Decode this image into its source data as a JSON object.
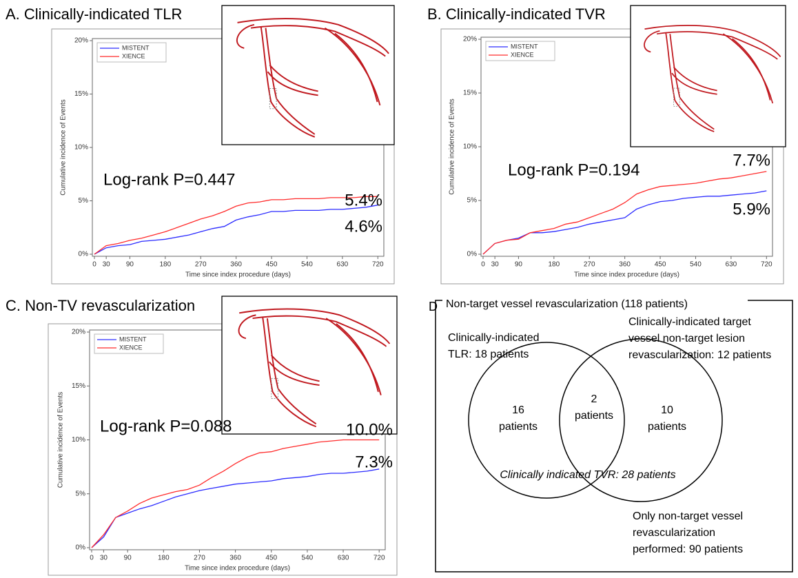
{
  "chart_data": [
    {
      "type": "line",
      "title": "A. Clinically-indicated TLR",
      "x_label": "Time since index procedure (days)",
      "y_label": "Cumulative incidence of Events",
      "x": [
        0,
        30,
        60,
        90,
        120,
        150,
        180,
        210,
        240,
        270,
        300,
        330,
        360,
        390,
        420,
        450,
        480,
        510,
        540,
        570,
        600,
        630,
        660,
        690,
        720
      ],
      "xlim": [
        0,
        730
      ],
      "xticks": [
        0,
        30,
        90,
        180,
        270,
        360,
        450,
        540,
        630,
        720
      ],
      "ylim": [
        0,
        20
      ],
      "yticks": [
        {
          "value": 0,
          "label": "0%"
        },
        {
          "value": 5,
          "label": "5%"
        },
        {
          "value": 10,
          "label": "10%"
        },
        {
          "value": 15,
          "label": "15%"
        },
        {
          "value": 20,
          "label": "20%"
        }
      ],
      "legend": "upper left",
      "series": [
        {
          "name": "MISTENT",
          "color": "#2a2aff",
          "values": [
            0,
            0.6,
            0.8,
            0.9,
            1.2,
            1.3,
            1.4,
            1.6,
            1.8,
            2.1,
            2.4,
            2.6,
            3.2,
            3.5,
            3.7,
            4.0,
            4.0,
            4.1,
            4.1,
            4.1,
            4.2,
            4.2,
            4.3,
            4.4,
            4.6
          ]
        },
        {
          "name": "XIENCE",
          "color": "#ff2a2a",
          "values": [
            0,
            0.8,
            1.0,
            1.3,
            1.5,
            1.8,
            2.1,
            2.5,
            2.9,
            3.3,
            3.6,
            4.0,
            4.5,
            4.8,
            4.9,
            5.1,
            5.1,
            5.2,
            5.2,
            5.2,
            5.3,
            5.3,
            5.3,
            5.4,
            5.4
          ]
        }
      ],
      "annotations": [
        "Log-rank P=0.447",
        "5.4%",
        "4.6%"
      ]
    },
    {
      "type": "line",
      "title": "B. Clinically-indicated TVR",
      "x_label": "Time since index procedure (days)",
      "y_label": "Cumulative incidence of Events",
      "x": [
        0,
        30,
        60,
        90,
        120,
        150,
        180,
        210,
        240,
        270,
        300,
        330,
        360,
        390,
        420,
        450,
        480,
        510,
        540,
        570,
        600,
        630,
        660,
        690,
        720
      ],
      "xlim": [
        0,
        730
      ],
      "xticks": [
        0,
        30,
        90,
        180,
        270,
        360,
        450,
        540,
        630,
        720
      ],
      "ylim": [
        0,
        20
      ],
      "yticks": [
        {
          "value": 0,
          "label": "0%"
        },
        {
          "value": 5,
          "label": "5%"
        },
        {
          "value": 10,
          "label": "10%"
        },
        {
          "value": 15,
          "label": "15%"
        },
        {
          "value": 20,
          "label": "20%"
        }
      ],
      "legend": "upper left",
      "series": [
        {
          "name": "MISTENT",
          "color": "#2a2aff",
          "values": [
            0,
            1.0,
            1.3,
            1.5,
            2.0,
            2.0,
            2.1,
            2.3,
            2.5,
            2.8,
            3.0,
            3.2,
            3.4,
            4.2,
            4.6,
            4.9,
            5.0,
            5.2,
            5.3,
            5.4,
            5.4,
            5.5,
            5.6,
            5.7,
            5.9
          ]
        },
        {
          "name": "XIENCE",
          "color": "#ff2a2a",
          "values": [
            0,
            1.0,
            1.3,
            1.4,
            2.0,
            2.2,
            2.4,
            2.8,
            3.0,
            3.4,
            3.8,
            4.2,
            4.8,
            5.6,
            6.0,
            6.3,
            6.4,
            6.5,
            6.6,
            6.8,
            7.0,
            7.1,
            7.3,
            7.5,
            7.7
          ]
        }
      ],
      "annotations": [
        "Log-rank P=0.194",
        "7.7%",
        "5.9%"
      ]
    },
    {
      "type": "line",
      "title": "C. Non-TV revascularization",
      "x_label": "Time since index procedure (days)",
      "y_label": "Cumulative incidence of Events",
      "x": [
        0,
        30,
        60,
        90,
        120,
        150,
        180,
        210,
        240,
        270,
        300,
        330,
        360,
        390,
        420,
        450,
        480,
        510,
        540,
        570,
        600,
        630,
        660,
        690,
        720
      ],
      "xlim": [
        0,
        730
      ],
      "xticks": [
        0,
        30,
        90,
        180,
        270,
        360,
        450,
        540,
        630,
        720
      ],
      "ylim": [
        0,
        20
      ],
      "yticks": [
        {
          "value": 0,
          "label": "0%"
        },
        {
          "value": 5,
          "label": "5%"
        },
        {
          "value": 10,
          "label": "10%"
        },
        {
          "value": 15,
          "label": "15%"
        },
        {
          "value": 20,
          "label": "20%"
        }
      ],
      "legend": "upper left",
      "series": [
        {
          "name": "MISTENT",
          "color": "#2a2aff",
          "values": [
            0,
            1.0,
            2.8,
            3.2,
            3.6,
            3.9,
            4.3,
            4.7,
            5.0,
            5.3,
            5.5,
            5.7,
            5.9,
            6.0,
            6.1,
            6.2,
            6.4,
            6.5,
            6.6,
            6.8,
            6.9,
            6.9,
            7.0,
            7.1,
            7.3
          ]
        },
        {
          "name": "XIENCE",
          "color": "#ff2a2a",
          "values": [
            0,
            1.2,
            2.8,
            3.4,
            4.1,
            4.6,
            4.9,
            5.2,
            5.4,
            5.8,
            6.5,
            7.1,
            7.8,
            8.4,
            8.8,
            8.9,
            9.2,
            9.4,
            9.6,
            9.8,
            9.9,
            10.0,
            10.0,
            10.0,
            10.0
          ]
        }
      ],
      "annotations": [
        "Log-rank P=0.088",
        "10.0%",
        "7.3%"
      ]
    }
  ],
  "panel_d": {
    "label": "D",
    "title": "Non-target vessel revascularization (118 patients)",
    "left_set": [
      "Clinically-indicated",
      "TLR: 18 patients"
    ],
    "right_set": [
      "Clinically-indicated target",
      "vessel non-target lesion",
      "revascularization: 12 patients"
    ],
    "left_only": [
      "16",
      "patients"
    ],
    "overlap": [
      "2",
      "patients"
    ],
    "right_only": [
      "10",
      "patients"
    ],
    "union": "Clinically indicated TVR: 28 patients",
    "outside": [
      "Only non-target vessel",
      "revascularization",
      "performed: 90 patients"
    ]
  }
}
